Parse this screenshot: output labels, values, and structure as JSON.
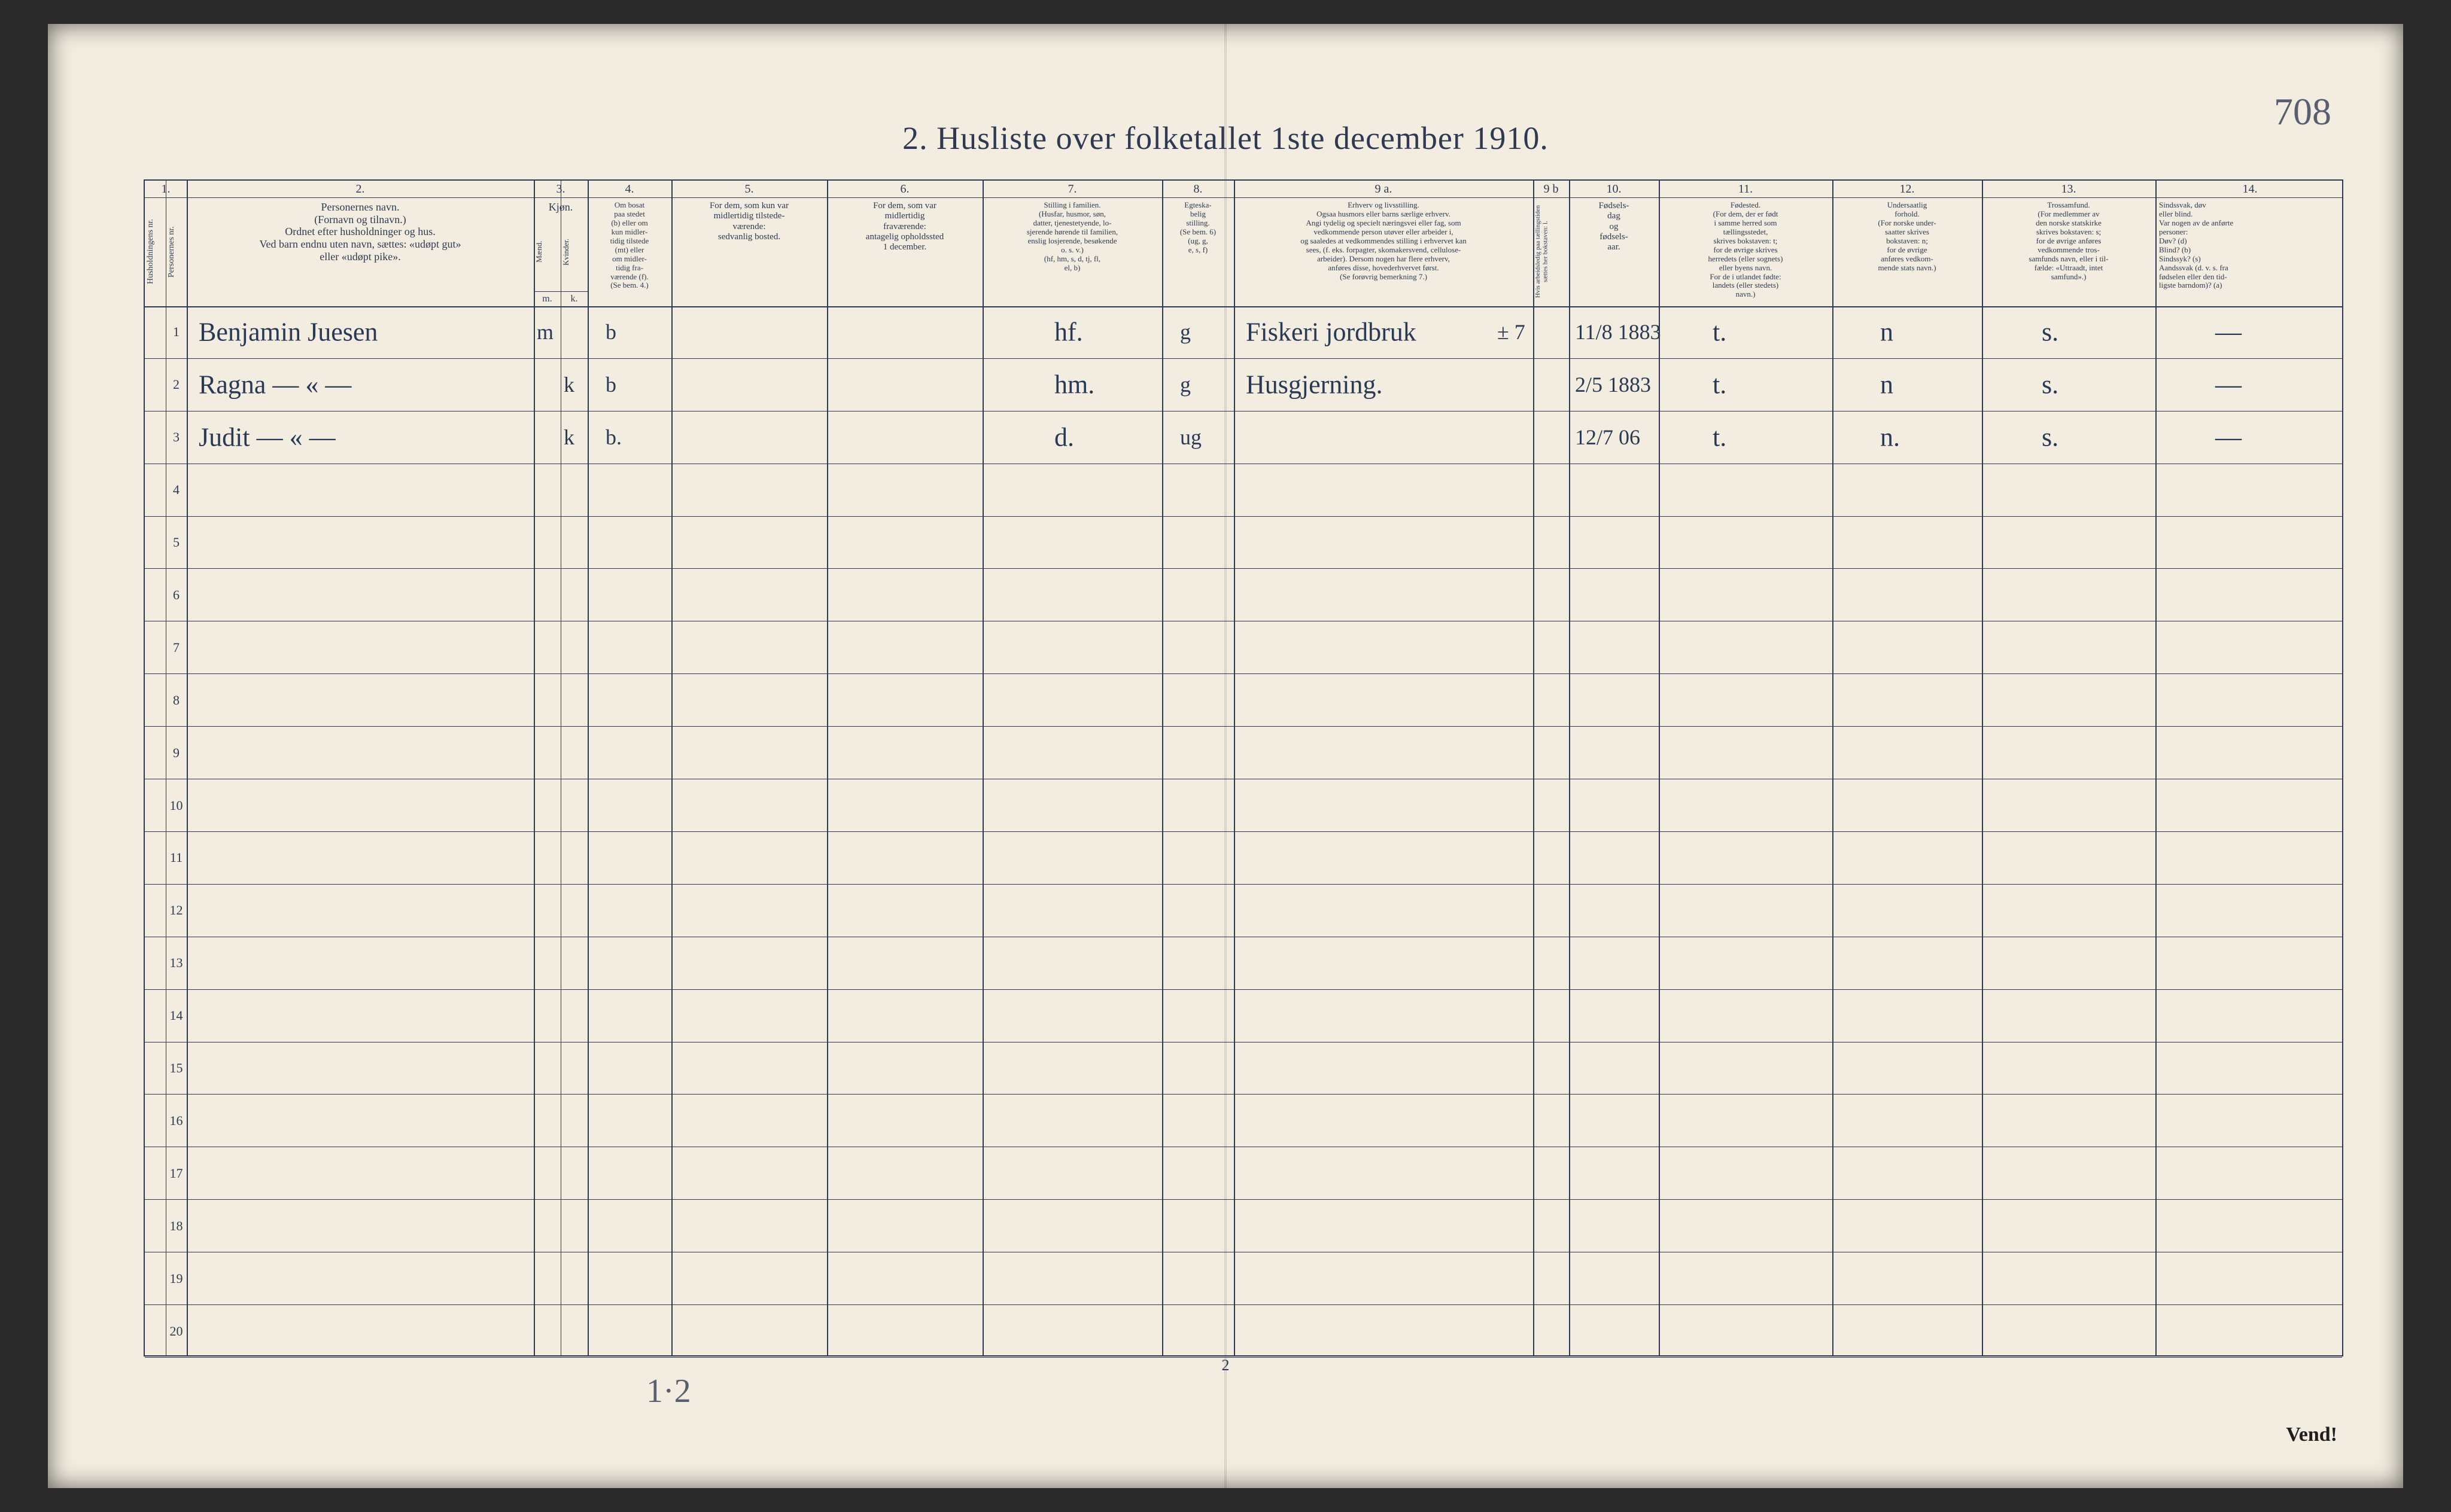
{
  "title": "2.  Husliste over folketallet 1ste december 1910.",
  "page_top_right": "708",
  "page_bottom_center": "2",
  "vend": "Vend!",
  "pencil_note": "1·2",
  "columns": {
    "nums": [
      "1.",
      "2.",
      "3.",
      "4.",
      "5.",
      "6.",
      "7.",
      "8.",
      "9 a.",
      "9 b",
      "10.",
      "11.",
      "12.",
      "13.",
      "14."
    ],
    "c1_rot_a": "Husholdningens nr.",
    "c1_rot_b": "Personernes nr.",
    "c2": "Personernes navn.\n(Fornavn og tilnavn.)\nOrdnet efter husholdninger og hus.\nVed barn endnu uten navn, sættes: «udøpt gut»\neller «udøpt pike».",
    "c3": "Kjøn.",
    "c3_sub": "Mænd.  Kvinder.",
    "c3_mk_m": "m.",
    "c3_mk_k": "k.",
    "c4": "Om bosat\npaa stedet\n(b) eller om\nkun midler-\ntidig tilstede\n(mt) eller\nom midler-\ntidig fra-\nværende (f).\n(Se bem. 4.)",
    "c5": "For dem, som kun var\nmidlertidig tilstede-\nværende:\nsedvanlig bosted.",
    "c6": "For dem, som var\nmidlertidig\nfraværende:\nantagelig opholdssted\n1 december.",
    "c7": "Stilling i familien.\n(Husfar, husmor, søn,\ndatter, tjenestetyende, lo-\nsjerende hørende til familien,\nenslig losjerende, besøkende\no. s. v.)\n(hf, hm, s, d, tj, fl,\nel, b)",
    "c8": "Egteska-\nbelig\nstilling.\n(Se bem. 6)\n(ug, g,\ne, s, f)",
    "c9a": "Erhverv og livsstilling.\nOgsaa husmors eller barns særlige erhverv.\nAngi tydelig og specielt næringsvei eller fag, som\nvedkommende person utøver eller arbeider i,\nog saaledes at vedkommendes stilling i erhvervet kan\nsees, (f. eks. forpagter, skomakersvend, cellulose-\narbeider). Dersom nogen har flere erhverv,\nanføres disse, hovederhvervet først.\n(Se forøvrig bemerkning 7.)",
    "c9b_rot": "Hvis arbeidsledig paa tællingstiden sættes her bokstaven: l.",
    "c10": "Fødsels-\ndag\nog\nfødsels-\naar.",
    "c11": "Fødested.\n(For dem, der er født\ni samme herred som\ntællingsstedet,\nskrives bokstaven: t;\nfor de øvrige skrives\nherredets (eller sognets)\neller byens navn.\nFor de i utlandet fødte:\nlandets (eller stedets)\nnavn.)",
    "c12": "Undersaatlig\nforhold.\n(For norske under-\nsaatter skrives\nbokstaven: n;\nfor de øvrige\nanføres vedkom-\nmende stats navn.)",
    "c13": "Trossamfund.\n(For medlemmer av\nden norske statskirke\nskrives bokstaven: s;\nfor de øvrige anføres\nvedkommende tros-\nsamfunds navn, eller i til-\nfælde: «Uttraadt, intet\nsamfund».)",
    "c14": "Sindssvak, døv\neller blind.\nVar nogen av de anførte\npersoner:\nDøv?        (d)\nBlind?       (b)\nSindssyk?  (s)\nAandssvak (d. v. s. fra\nfødselen eller den tid-\nligste barndom)?  (a)"
  },
  "first_rows_height": 60,
  "rest_rows_height": 84,
  "row_count": 20,
  "entries": [
    {
      "n": 1,
      "name": "Benjamin Juesen",
      "sex": "m",
      "bosat": "b",
      "stilling": "hf.",
      "egte": "g",
      "erhverv": "Fiskeri jordbruk",
      "erhverv_note": "± 7",
      "fdato": "11/8 1883",
      "fsted": "t.",
      "under": "n",
      "tros": "s.",
      "sind": "—"
    },
    {
      "n": 2,
      "name": "Ragna    — « —",
      "sex": "k",
      "bosat": "b",
      "stilling": "hm.",
      "egte": "g",
      "erhverv": "Husgjerning.",
      "fdato": "2/5 1883",
      "fsted": "t.",
      "under": "n",
      "tros": "s.",
      "sind": "—"
    },
    {
      "n": 3,
      "name": "Judit    — « —",
      "sex": "k",
      "bosat": "b.",
      "stilling": "d.",
      "egte": "ug",
      "erhverv": "",
      "fdato": "12/7 06",
      "fsted": "t.",
      "under": "n.",
      "tros": "s.",
      "sind": "—"
    }
  ],
  "colors": {
    "paper": "#f2ede0",
    "ink_print": "#2f3a52",
    "ink_hand": "#2a3a55",
    "pencil": "#5a5f70"
  }
}
